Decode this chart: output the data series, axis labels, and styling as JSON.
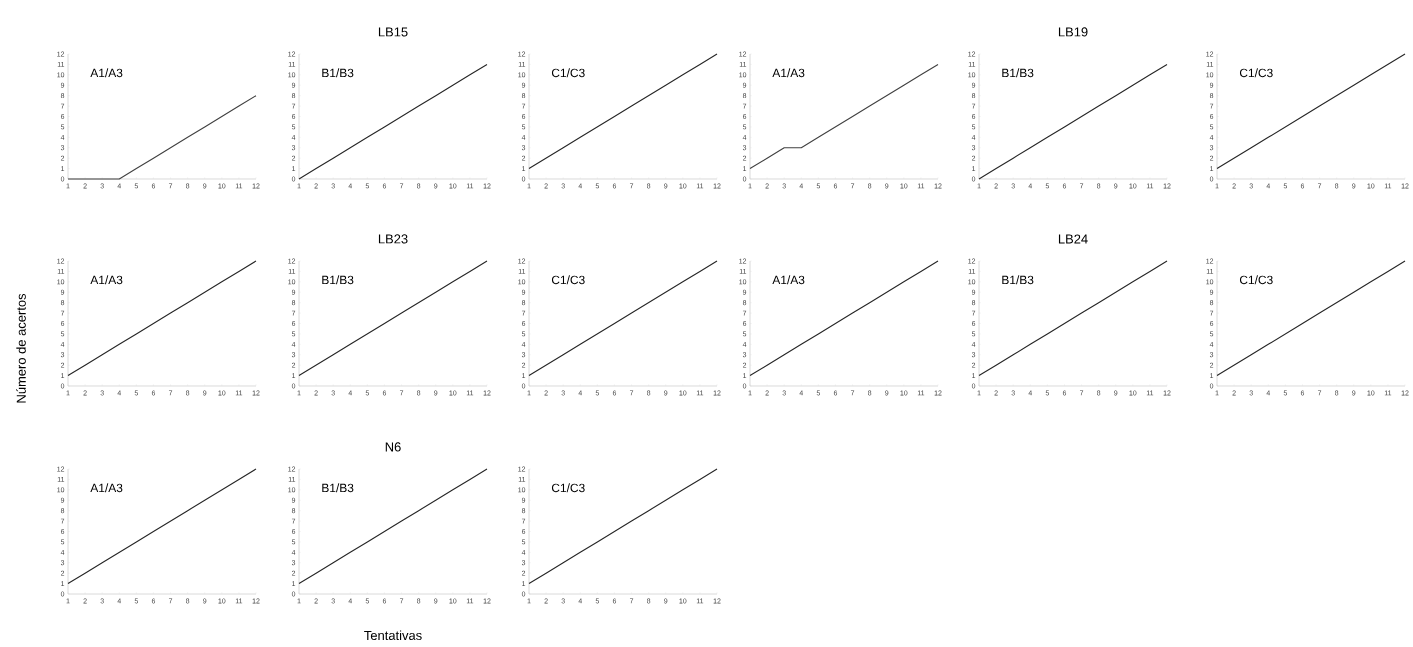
{
  "chart_data": [
    {
      "type": "line",
      "annotations": [
        "A1/A3"
      ],
      "x": [
        1,
        2,
        3,
        4,
        5,
        6,
        7,
        8,
        9,
        10,
        11,
        12
      ],
      "series": [
        {
          "color": "#404040",
          "values": [
            0,
            0,
            0,
            0,
            1,
            2,
            3,
            4,
            5,
            6,
            7,
            8
          ]
        }
      ],
      "xlim": [
        1,
        12
      ],
      "ylim": [
        0,
        12
      ],
      "xticks": [
        1,
        2,
        3,
        4,
        5,
        6,
        7,
        8,
        9,
        10,
        11,
        12
      ],
      "yticks": [
        0,
        1,
        2,
        3,
        4,
        5,
        6,
        7,
        8,
        9,
        10,
        11,
        12
      ]
    },
    {
      "type": "line",
      "title": "LB15",
      "annotations": [
        "B1/B3"
      ],
      "x": [
        1,
        2,
        3,
        4,
        5,
        6,
        7,
        8,
        9,
        10,
        11,
        12
      ],
      "series": [
        {
          "color": "#262626",
          "values": [
            0,
            1,
            2,
            3,
            4,
            5,
            6,
            7,
            8,
            9,
            10,
            11
          ]
        }
      ],
      "xlim": [
        1,
        12
      ],
      "ylim": [
        0,
        12
      ],
      "xticks": [
        1,
        2,
        3,
        4,
        5,
        6,
        7,
        8,
        9,
        10,
        11,
        12
      ],
      "yticks": [
        0,
        1,
        2,
        3,
        4,
        5,
        6,
        7,
        8,
        9,
        10,
        11,
        12
      ]
    },
    {
      "type": "line",
      "annotations": [
        "C1/C3"
      ],
      "x": [
        1,
        2,
        3,
        4,
        5,
        6,
        7,
        8,
        9,
        10,
        11,
        12
      ],
      "series": [
        {
          "color": "#262626",
          "values": [
            1,
            2,
            3,
            4,
            5,
            6,
            7,
            8,
            9,
            10,
            11,
            12
          ]
        }
      ],
      "xlim": [
        1,
        12
      ],
      "ylim": [
        0,
        12
      ],
      "xticks": [
        1,
        2,
        3,
        4,
        5,
        6,
        7,
        8,
        9,
        10,
        11,
        12
      ],
      "yticks": [
        0,
        1,
        2,
        3,
        4,
        5,
        6,
        7,
        8,
        9,
        10,
        11,
        12
      ]
    },
    {
      "type": "line",
      "annotations": [
        "A1/A3"
      ],
      "x": [
        1,
        2,
        3,
        4,
        5,
        6,
        7,
        8,
        9,
        10,
        11,
        12
      ],
      "series": [
        {
          "color": "#404040",
          "values": [
            1,
            2,
            3,
            3,
            4,
            5,
            6,
            7,
            8,
            9,
            10,
            11
          ]
        }
      ],
      "xlim": [
        1,
        12
      ],
      "ylim": [
        0,
        12
      ],
      "xticks": [
        1,
        2,
        3,
        4,
        5,
        6,
        7,
        8,
        9,
        10,
        11,
        12
      ],
      "yticks": [
        0,
        1,
        2,
        3,
        4,
        5,
        6,
        7,
        8,
        9,
        10,
        11,
        12
      ]
    },
    {
      "type": "line",
      "title": "LB19",
      "annotations": [
        "B1/B3"
      ],
      "x": [
        1,
        2,
        3,
        4,
        5,
        6,
        7,
        8,
        9,
        10,
        11,
        12
      ],
      "series": [
        {
          "color": "#262626",
          "values": [
            0,
            1,
            2,
            3,
            4,
            5,
            6,
            7,
            8,
            9,
            10,
            11
          ]
        }
      ],
      "xlim": [
        1,
        12
      ],
      "ylim": [
        0,
        12
      ],
      "xticks": [
        1,
        2,
        3,
        4,
        5,
        6,
        7,
        8,
        9,
        10,
        11,
        12
      ],
      "yticks": [
        0,
        1,
        2,
        3,
        4,
        5,
        6,
        7,
        8,
        9,
        10,
        11,
        12
      ]
    },
    {
      "type": "line",
      "annotations": [
        "C1/C3"
      ],
      "x": [
        1,
        2,
        3,
        4,
        5,
        6,
        7,
        8,
        9,
        10,
        11,
        12
      ],
      "series": [
        {
          "color": "#262626",
          "values": [
            1,
            2,
            3,
            4,
            5,
            6,
            7,
            8,
            9,
            10,
            11,
            12
          ]
        }
      ],
      "xlim": [
        1,
        12
      ],
      "ylim": [
        0,
        12
      ],
      "xticks": [
        1,
        2,
        3,
        4,
        5,
        6,
        7,
        8,
        9,
        10,
        11,
        12
      ],
      "yticks": [
        0,
        1,
        2,
        3,
        4,
        5,
        6,
        7,
        8,
        9,
        10,
        11,
        12
      ]
    },
    {
      "type": "line",
      "ylabel": "Número de acertos",
      "annotations": [
        "A1/A3"
      ],
      "x": [
        1,
        2,
        3,
        4,
        5,
        6,
        7,
        8,
        9,
        10,
        11,
        12
      ],
      "series": [
        {
          "color": "#262626",
          "values": [
            1,
            2,
            3,
            4,
            5,
            6,
            7,
            8,
            9,
            10,
            11,
            12
          ]
        }
      ],
      "xlim": [
        1,
        12
      ],
      "ylim": [
        0,
        12
      ],
      "xticks": [
        1,
        2,
        3,
        4,
        5,
        6,
        7,
        8,
        9,
        10,
        11,
        12
      ],
      "yticks": [
        0,
        1,
        2,
        3,
        4,
        5,
        6,
        7,
        8,
        9,
        10,
        11,
        12
      ]
    },
    {
      "type": "line",
      "title": "LB23",
      "annotations": [
        "B1/B3"
      ],
      "x": [
        1,
        2,
        3,
        4,
        5,
        6,
        7,
        8,
        9,
        10,
        11,
        12
      ],
      "series": [
        {
          "color": "#262626",
          "values": [
            1,
            2,
            3,
            4,
            5,
            6,
            7,
            8,
            9,
            10,
            11,
            12
          ]
        }
      ],
      "xlim": [
        1,
        12
      ],
      "ylim": [
        0,
        12
      ],
      "xticks": [
        1,
        2,
        3,
        4,
        5,
        6,
        7,
        8,
        9,
        10,
        11,
        12
      ],
      "yticks": [
        0,
        1,
        2,
        3,
        4,
        5,
        6,
        7,
        8,
        9,
        10,
        11,
        12
      ]
    },
    {
      "type": "line",
      "annotations": [
        "C1/C3"
      ],
      "x": [
        1,
        2,
        3,
        4,
        5,
        6,
        7,
        8,
        9,
        10,
        11,
        12
      ],
      "series": [
        {
          "color": "#262626",
          "values": [
            1,
            2,
            3,
            4,
            5,
            6,
            7,
            8,
            9,
            10,
            11,
            12
          ]
        }
      ],
      "xlim": [
        1,
        12
      ],
      "ylim": [
        0,
        12
      ],
      "xticks": [
        1,
        2,
        3,
        4,
        5,
        6,
        7,
        8,
        9,
        10,
        11,
        12
      ],
      "yticks": [
        0,
        1,
        2,
        3,
        4,
        5,
        6,
        7,
        8,
        9,
        10,
        11,
        12
      ]
    },
    {
      "type": "line",
      "annotations": [
        "A1/A3"
      ],
      "x": [
        1,
        2,
        3,
        4,
        5,
        6,
        7,
        8,
        9,
        10,
        11,
        12
      ],
      "series": [
        {
          "color": "#262626",
          "values": [
            1,
            2,
            3,
            4,
            5,
            6,
            7,
            8,
            9,
            10,
            11,
            12
          ]
        }
      ],
      "xlim": [
        1,
        12
      ],
      "ylim": [
        0,
        12
      ],
      "xticks": [
        1,
        2,
        3,
        4,
        5,
        6,
        7,
        8,
        9,
        10,
        11,
        12
      ],
      "yticks": [
        0,
        1,
        2,
        3,
        4,
        5,
        6,
        7,
        8,
        9,
        10,
        11,
        12
      ]
    },
    {
      "type": "line",
      "title": "LB24",
      "annotations": [
        "B1/B3"
      ],
      "x": [
        1,
        2,
        3,
        4,
        5,
        6,
        7,
        8,
        9,
        10,
        11,
        12
      ],
      "series": [
        {
          "color": "#262626",
          "values": [
            1,
            2,
            3,
            4,
            5,
            6,
            7,
            8,
            9,
            10,
            11,
            12
          ]
        }
      ],
      "xlim": [
        1,
        12
      ],
      "ylim": [
        0,
        12
      ],
      "xticks": [
        1,
        2,
        3,
        4,
        5,
        6,
        7,
        8,
        9,
        10,
        11,
        12
      ],
      "yticks": [
        0,
        1,
        2,
        3,
        4,
        5,
        6,
        7,
        8,
        9,
        10,
        11,
        12
      ]
    },
    {
      "type": "line",
      "annotations": [
        "C1/C3"
      ],
      "x": [
        1,
        2,
        3,
        4,
        5,
        6,
        7,
        8,
        9,
        10,
        11,
        12
      ],
      "series": [
        {
          "color": "#262626",
          "values": [
            1,
            2,
            3,
            4,
            5,
            6,
            7,
            8,
            9,
            10,
            11,
            12
          ]
        }
      ],
      "xlim": [
        1,
        12
      ],
      "ylim": [
        0,
        12
      ],
      "xticks": [
        1,
        2,
        3,
        4,
        5,
        6,
        7,
        8,
        9,
        10,
        11,
        12
      ],
      "yticks": [
        0,
        1,
        2,
        3,
        4,
        5,
        6,
        7,
        8,
        9,
        10,
        11,
        12
      ]
    },
    {
      "type": "line",
      "annotations": [
        "A1/A3"
      ],
      "x": [
        1,
        2,
        3,
        4,
        5,
        6,
        7,
        8,
        9,
        10,
        11,
        12
      ],
      "series": [
        {
          "color": "#262626",
          "values": [
            1,
            2,
            3,
            4,
            5,
            6,
            7,
            8,
            9,
            10,
            11,
            12
          ]
        }
      ],
      "xlim": [
        1,
        12
      ],
      "ylim": [
        0,
        12
      ],
      "xticks": [
        1,
        2,
        3,
        4,
        5,
        6,
        7,
        8,
        9,
        10,
        11,
        12
      ],
      "yticks": [
        0,
        1,
        2,
        3,
        4,
        5,
        6,
        7,
        8,
        9,
        10,
        11,
        12
      ]
    },
    {
      "type": "line",
      "title": "N6",
      "xlabel": "Tentativas",
      "annotations": [
        "B1/B3"
      ],
      "x": [
        1,
        2,
        3,
        4,
        5,
        6,
        7,
        8,
        9,
        10,
        11,
        12
      ],
      "series": [
        {
          "color": "#262626",
          "values": [
            1,
            2,
            3,
            4,
            5,
            6,
            7,
            8,
            9,
            10,
            11,
            12
          ]
        }
      ],
      "xlim": [
        1,
        12
      ],
      "ylim": [
        0,
        12
      ],
      "xticks": [
        1,
        2,
        3,
        4,
        5,
        6,
        7,
        8,
        9,
        10,
        11,
        12
      ],
      "yticks": [
        0,
        1,
        2,
        3,
        4,
        5,
        6,
        7,
        8,
        9,
        10,
        11,
        12
      ]
    },
    {
      "type": "line",
      "annotations": [
        "C1/C3"
      ],
      "x": [
        1,
        2,
        3,
        4,
        5,
        6,
        7,
        8,
        9,
        10,
        11,
        12
      ],
      "series": [
        {
          "color": "#262626",
          "values": [
            1,
            2,
            3,
            4,
            5,
            6,
            7,
            8,
            9,
            10,
            11,
            12
          ]
        }
      ],
      "xlim": [
        1,
        12
      ],
      "ylim": [
        0,
        12
      ],
      "xticks": [
        1,
        2,
        3,
        4,
        5,
        6,
        7,
        8,
        9,
        10,
        11,
        12
      ],
      "yticks": [
        0,
        1,
        2,
        3,
        4,
        5,
        6,
        7,
        8,
        9,
        10,
        11,
        12
      ]
    }
  ]
}
